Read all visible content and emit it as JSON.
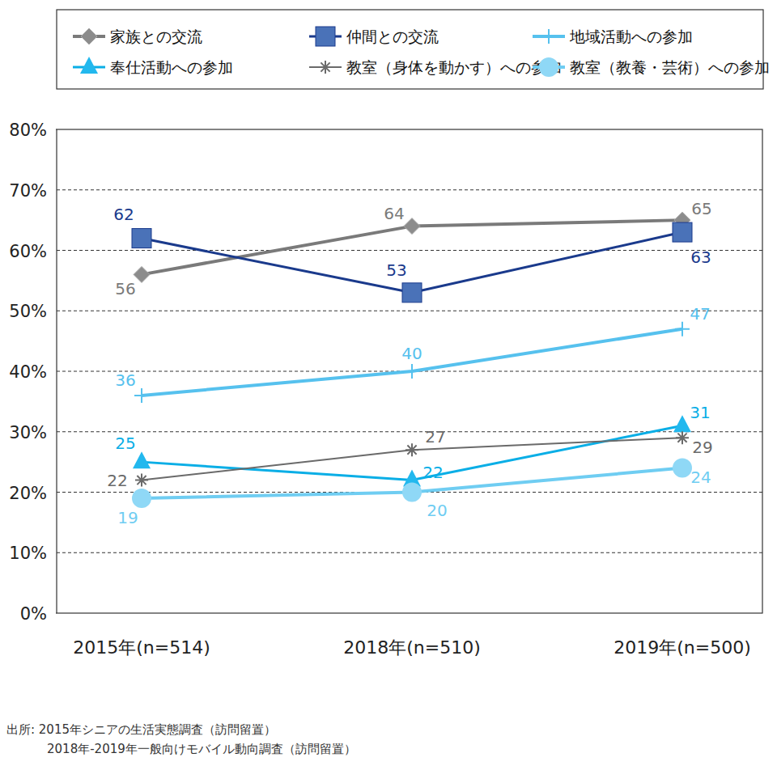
{
  "chart_data": {
    "type": "line",
    "categories": [
      "2015年(n=514)",
      "2018年(n=510)",
      "2019年(n=500)"
    ],
    "series": [
      {
        "name": "家族との交流",
        "color": "#7a7a7a",
        "marker": "diamond",
        "values": [
          56,
          64,
          65
        ]
      },
      {
        "name": "仲間との交流",
        "color": "#1a3a8c",
        "marker": "square",
        "values": [
          62,
          53,
          63
        ]
      },
      {
        "name": "地域活動への参加",
        "color": "#56c1ee",
        "marker": "plus",
        "values": [
          36,
          40,
          47
        ]
      },
      {
        "name": "奉仕活動への参加",
        "color": "#0aaee6",
        "marker": "triangle",
        "values": [
          25,
          22,
          31
        ]
      },
      {
        "name": "教室（身体を動かす）への参加",
        "color": "#6a6a6a",
        "marker": "asterisk",
        "values": [
          22,
          27,
          29
        ]
      },
      {
        "name": "教室（教養・芸術）への参加",
        "color": "#6fcdf2",
        "marker": "circle",
        "values": [
          19,
          20,
          24
        ]
      }
    ],
    "ylim": [
      0,
      80
    ],
    "yticks": [
      {
        "value": 0,
        "label": "0%"
      },
      {
        "value": 10,
        "label": "10%"
      },
      {
        "value": 20,
        "label": "20%"
      },
      {
        "value": 30,
        "label": "30%"
      },
      {
        "value": 40,
        "label": "40%"
      },
      {
        "value": 50,
        "label": "50%"
      },
      {
        "value": 60,
        "label": "60%"
      },
      {
        "value": 70,
        "label": "70%"
      },
      {
        "value": 80,
        "label": "80%"
      }
    ],
    "grid": true,
    "legend": "top",
    "data_labels": true,
    "annotations": [
      "出所: 2015年シニアの生活実態調査（訪問留置）",
      "2018年-2019年一般向けモバイル動向調査（訪問留置）"
    ]
  }
}
